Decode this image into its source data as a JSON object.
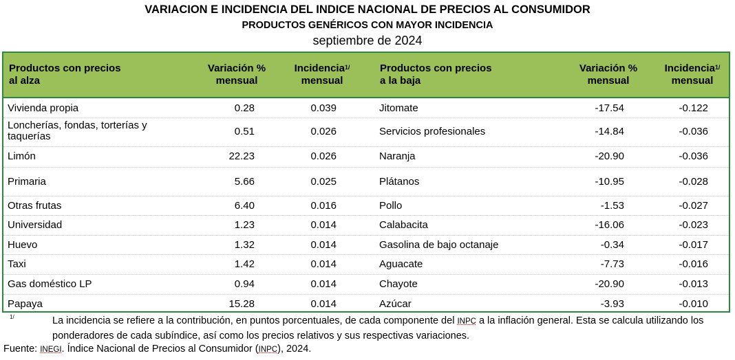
{
  "title": {
    "line1": "VARIACION E INCIDENCIA DEL INDICE NACIONAL DE PRECIOS AL CONSUMIDOR",
    "line2": "PRODUCTOS GENÉRICOS CON MAYOR INCIDENCIA",
    "line3": "septiembre de 2024"
  },
  "header": {
    "up_products_l1": "Productos con precios",
    "up_products_l2": "al alza",
    "up_var_l1": "Variación %",
    "up_var_l2": "mensual",
    "up_inc_l1": "Incidencia",
    "up_inc_l2": "mensual",
    "down_products_l1": "Productos con precios",
    "down_products_l2": "a la baja",
    "down_var_l1": "Variación %",
    "down_var_l2": "mensual",
    "down_inc_l1": "Incidencia",
    "down_inc_l2": "mensual",
    "footnote_mark": "1/"
  },
  "rows": [
    {
      "up_product": "Vivienda propia",
      "up_var": "0.28",
      "up_inc": "0.039",
      "down_product": "Jitomate",
      "down_var": "-17.54",
      "down_inc": "-0.122"
    },
    {
      "up_product": "Loncherías, fondas, torterías y taquerías",
      "up_var": "0.51",
      "up_inc": "0.026",
      "down_product": "Servicios profesionales",
      "down_var": "-14.84",
      "down_inc": "-0.036"
    },
    {
      "up_product": "Limón",
      "up_var": "22.23",
      "up_inc": "0.026",
      "down_product": "Naranja",
      "down_var": "-20.90",
      "down_inc": "-0.036"
    },
    {
      "up_product": "Primaria",
      "up_var": "5.66",
      "up_inc": "0.025",
      "down_product": "Plátanos",
      "down_var": "-10.95",
      "down_inc": "-0.028"
    },
    {
      "up_product": "Otras frutas",
      "up_var": "6.40",
      "up_inc": "0.016",
      "down_product": "Pollo",
      "down_var": "-1.53",
      "down_inc": "-0.027"
    },
    {
      "up_product": "Universidad",
      "up_var": "1.23",
      "up_inc": "0.014",
      "down_product": "Calabacita",
      "down_var": "-16.06",
      "down_inc": "-0.023"
    },
    {
      "up_product": "Huevo",
      "up_var": "1.32",
      "up_inc": "0.014",
      "down_product": "Gasolina de bajo octanaje",
      "down_var": "-0.34",
      "down_inc": "-0.017"
    },
    {
      "up_product": "Taxi",
      "up_var": "1.42",
      "up_inc": "0.014",
      "down_product": "Aguacate",
      "down_var": "-7.73",
      "down_inc": "-0.016"
    },
    {
      "up_product": "Gas doméstico LP",
      "up_var": "0.94",
      "up_inc": "0.014",
      "down_product": "Chayote",
      "down_var": "-20.90",
      "down_inc": "-0.013"
    },
    {
      "up_product": "Papaya",
      "up_var": "15.28",
      "up_inc": "0.014",
      "down_product": "Azúcar",
      "down_var": "-3.93",
      "down_inc": "-0.010"
    }
  ],
  "notes": {
    "mark": "1/",
    "text_before": "La incidencia se refiere a la contribución, en puntos porcentuales, de cada componente del ",
    "abbr_inpc": "INPC",
    "text_after": " a la inflación general. Esta se calcula utilizando los ponderadores de cada subíndice, así como los precios relativos y sus respectivas variaciones.",
    "fuente_label": "Fuente: ",
    "fuente_inegi": "INEGI",
    "fuente_mid": ". Índice Nacional de Precios al Consumidor (",
    "fuente_inpc": "INPC",
    "fuente_end": "), 2024."
  },
  "colors": {
    "header_bg": "#9bbf59",
    "border": "#2c8a3c"
  }
}
